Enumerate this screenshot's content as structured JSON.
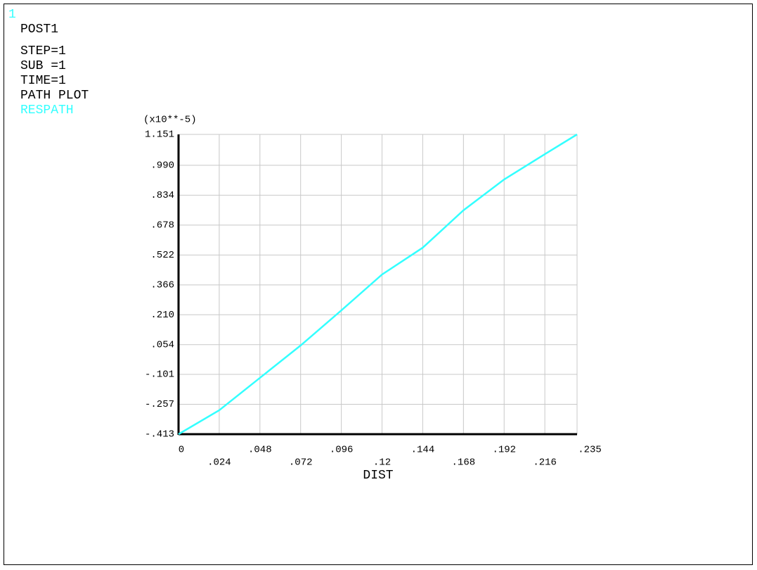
{
  "chart_data": {
    "type": "line",
    "window_number": "1",
    "header": "POST1",
    "info": [
      "STEP=1",
      "SUB =1",
      "TIME=1",
      "PATH PLOT"
    ],
    "y_multiplier": "(x10**-5)",
    "xlabel": "DIST",
    "x": [
      0,
      0.024,
      0.048,
      0.072,
      0.096,
      0.12,
      0.144,
      0.168,
      0.192,
      0.216,
      0.235
    ],
    "series": [
      {
        "name": "RESPATH",
        "color": "#33ffff",
        "values": [
          -0.413,
          -0.288,
          -0.119,
          0.05,
          0.233,
          0.42,
          0.56,
          0.755,
          0.916,
          1.048,
          1.151
        ]
      }
    ],
    "xlim": [
      0,
      0.235
    ],
    "ylim": [
      -0.413,
      1.151
    ],
    "xticks": [
      0,
      {
        "value": 0.024,
        "label": ".024"
      },
      {
        "value": 0.048,
        "label": ".048"
      },
      {
        "value": 0.072,
        "label": ".072"
      },
      {
        "value": 0.096,
        "label": ".096"
      },
      {
        "value": 0.12,
        "label": ".12"
      },
      {
        "value": 0.144,
        "label": ".144"
      },
      {
        "value": 0.168,
        "label": ".168"
      },
      {
        "value": 0.192,
        "label": ".192"
      },
      {
        "value": 0.216,
        "label": ".216"
      },
      {
        "value": 0.235,
        "label": ".235"
      }
    ],
    "yticks": [
      {
        "value": -0.413,
        "label": "-.413"
      },
      {
        "value": -0.257,
        "label": "-.257"
      },
      {
        "value": -0.101,
        "label": "-.101"
      },
      {
        "value": 0.054,
        "label": ".054"
      },
      {
        "value": 0.21,
        "label": ".210"
      },
      {
        "value": 0.366,
        "label": ".366"
      },
      {
        "value": 0.522,
        "label": ".522"
      },
      {
        "value": 0.678,
        "label": ".678"
      },
      {
        "value": 0.834,
        "label": ".834"
      },
      {
        "value": 0.99,
        "label": ".990"
      },
      1.151
    ],
    "grid": true
  }
}
